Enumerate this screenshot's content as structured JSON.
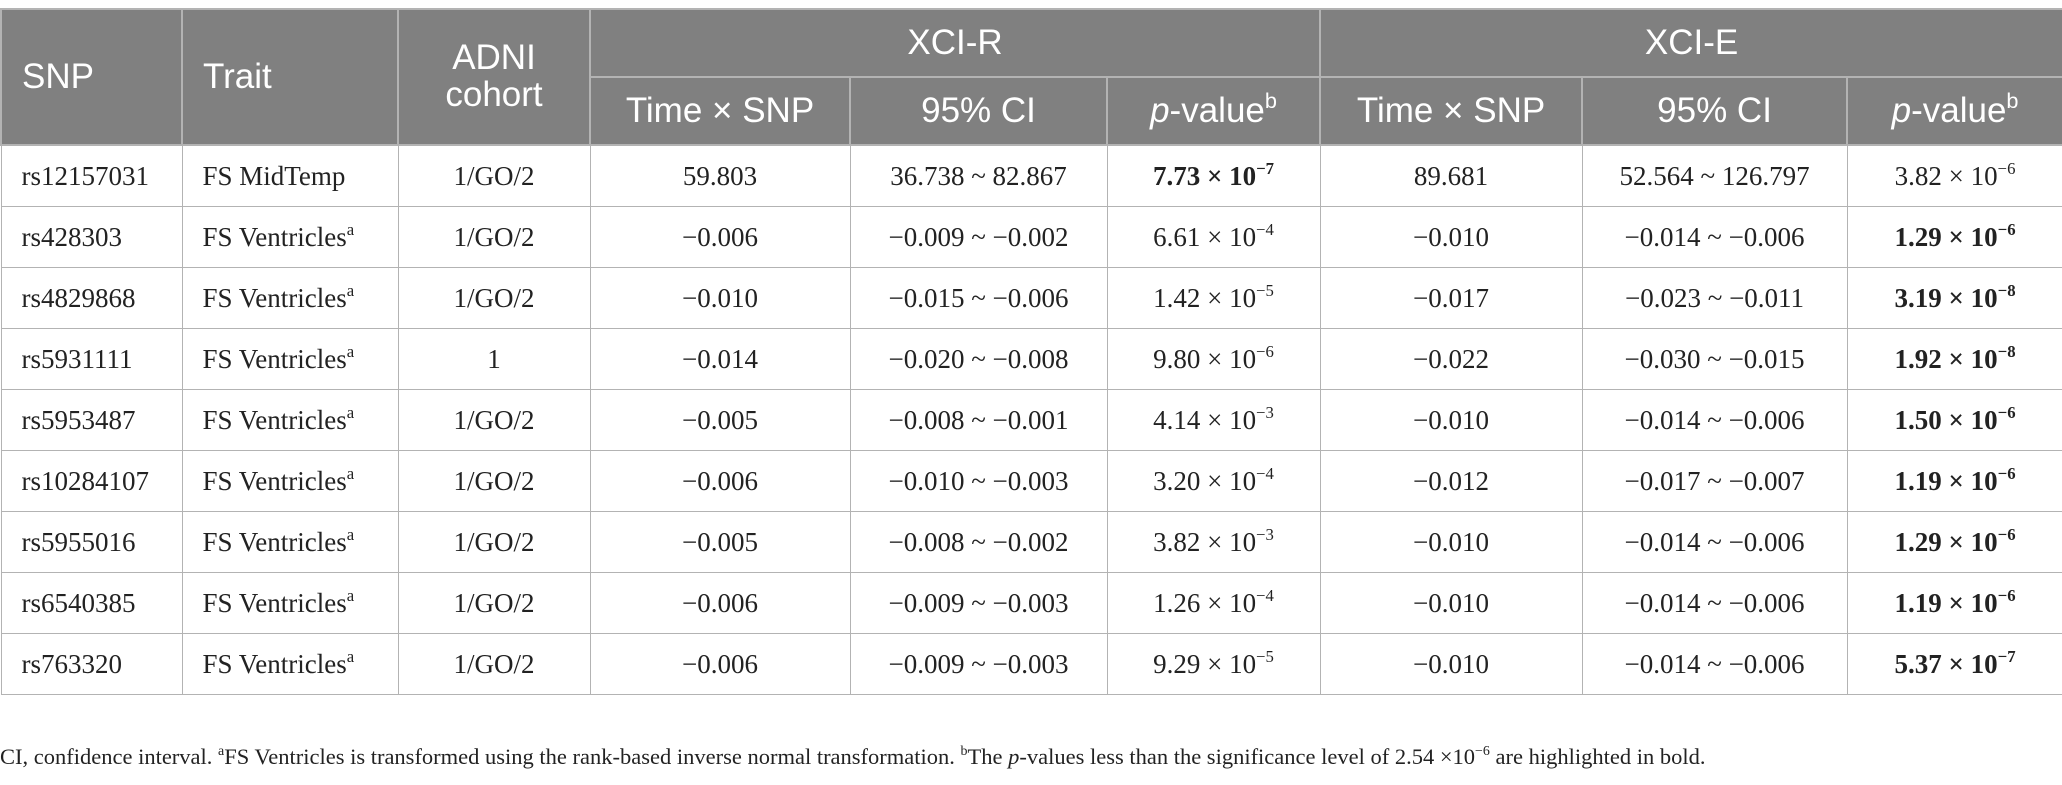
{
  "table": {
    "headers": {
      "snp": "SNP",
      "trait": "Trait",
      "adni_cohort": "ADNI cohort",
      "xci_r": "XCI-R",
      "xci_e": "XCI-E",
      "time_snp": "Time × SNP",
      "ci": "95% CI",
      "p_italic": "p",
      "p_rest": "-value",
      "p_sup": "b"
    },
    "rows": [
      {
        "snp": "rs12157031",
        "trait": "FS MidTemp",
        "trait_sup": "",
        "cohort": "1/GO/2",
        "r_time": "59.803",
        "r_ci": "36.738 ~ 82.867",
        "r_p": "7.73 × 10",
        "r_p_exp": "−7",
        "r_bold": true,
        "e_time": "89.681",
        "e_ci": "52.564 ~ 126.797",
        "e_p": "3.82 × 10",
        "e_p_exp": "−6",
        "e_bold": false
      },
      {
        "snp": "rs428303",
        "trait": "FS Ventricles",
        "trait_sup": "a",
        "cohort": "1/GO/2",
        "r_time": "−0.006",
        "r_ci": "−0.009 ~ −0.002",
        "r_p": "6.61 × 10",
        "r_p_exp": "−4",
        "r_bold": false,
        "e_time": "−0.010",
        "e_ci": "−0.014 ~ −0.006",
        "e_p": "1.29 × 10",
        "e_p_exp": "−6",
        "e_bold": true
      },
      {
        "snp": "rs4829868",
        "trait": "FS Ventricles",
        "trait_sup": "a",
        "cohort": "1/GO/2",
        "r_time": "−0.010",
        "r_ci": "−0.015 ~ −0.006",
        "r_p": "1.42 × 10",
        "r_p_exp": "−5",
        "r_bold": false,
        "e_time": "−0.017",
        "e_ci": "−0.023 ~ −0.011",
        "e_p": "3.19 × 10",
        "e_p_exp": "−8",
        "e_bold": true
      },
      {
        "snp": "rs5931111",
        "trait": "FS Ventricles",
        "trait_sup": "a",
        "cohort": "1",
        "r_time": "−0.014",
        "r_ci": "−0.020 ~ −0.008",
        "r_p": "9.80 × 10",
        "r_p_exp": "−6",
        "r_bold": false,
        "e_time": "−0.022",
        "e_ci": "−0.030 ~ −0.015",
        "e_p": "1.92 × 10",
        "e_p_exp": "−8",
        "e_bold": true
      },
      {
        "snp": "rs5953487",
        "trait": "FS Ventricles",
        "trait_sup": "a",
        "cohort": "1/GO/2",
        "r_time": "−0.005",
        "r_ci": "−0.008 ~ −0.001",
        "r_p": "4.14 × 10",
        "r_p_exp": "−3",
        "r_bold": false,
        "e_time": "−0.010",
        "e_ci": "−0.014 ~ −0.006",
        "e_p": "1.50 × 10",
        "e_p_exp": "−6",
        "e_bold": true
      },
      {
        "snp": "rs10284107",
        "trait": "FS Ventricles",
        "trait_sup": "a",
        "cohort": "1/GO/2",
        "r_time": "−0.006",
        "r_ci": "−0.010 ~ −0.003",
        "r_p": "3.20 × 10",
        "r_p_exp": "−4",
        "r_bold": false,
        "e_time": "−0.012",
        "e_ci": "−0.017 ~ −0.007",
        "e_p": "1.19 × 10",
        "e_p_exp": "−6",
        "e_bold": true
      },
      {
        "snp": "rs5955016",
        "trait": "FS Ventricles",
        "trait_sup": "a",
        "cohort": "1/GO/2",
        "r_time": "−0.005",
        "r_ci": "−0.008 ~ −0.002",
        "r_p": "3.82 × 10",
        "r_p_exp": "−3",
        "r_bold": false,
        "e_time": "−0.010",
        "e_ci": "−0.014 ~ −0.006",
        "e_p": "1.29 × 10",
        "e_p_exp": "−6",
        "e_bold": true
      },
      {
        "snp": "rs6540385",
        "trait": "FS Ventricles",
        "trait_sup": "a",
        "cohort": "1/GO/2",
        "r_time": "−0.006",
        "r_ci": "−0.009 ~ −0.003",
        "r_p": "1.26 × 10",
        "r_p_exp": "−4",
        "r_bold": false,
        "e_time": "−0.010",
        "e_ci": "−0.014 ~ −0.006",
        "e_p": "1.19 × 10",
        "e_p_exp": "−6",
        "e_bold": true
      },
      {
        "snp": "rs763320",
        "trait": "FS Ventricles",
        "trait_sup": "a",
        "cohort": "1/GO/2",
        "r_time": "−0.006",
        "r_ci": "−0.009 ~ −0.003",
        "r_p": "9.29 × 10",
        "r_p_exp": "−5",
        "r_bold": false,
        "e_time": "−0.010",
        "e_ci": "−0.014 ~ −0.006",
        "e_p": "5.37 × 10",
        "e_p_exp": "−7",
        "e_bold": true
      }
    ]
  },
  "footnote": {
    "ci": "CI, confidence interval. ",
    "a_mark": "a",
    "a_text": "FS Ventricles is transformed using the rank-based inverse normal transformation. ",
    "b_mark": "b",
    "b_text1": "The ",
    "b_italic": "p",
    "b_text2": "-values less than the significance level of 2.54 ×10",
    "b_exp": "−6",
    "b_text3": " are highlighted in bold."
  },
  "colors": {
    "header_bg": "#808080",
    "header_text": "#ffffff",
    "grid": "#b3b3b3"
  }
}
